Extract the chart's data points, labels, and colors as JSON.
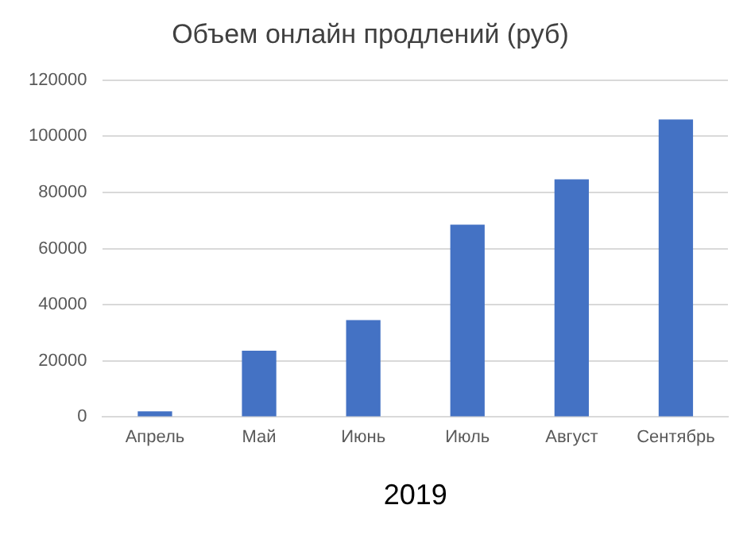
{
  "chart_data": {
    "type": "bar",
    "title": "Объем онлайн продлений (руб)",
    "xlabel": "2019",
    "categories": [
      "Апрель",
      "Май",
      "Июнь",
      "Июль",
      "Август",
      "Сентябрь"
    ],
    "values": [
      2000,
      23600,
      34500,
      68500,
      84700,
      106000
    ],
    "color": "#4472c4",
    "ylim": [
      0,
      120000
    ],
    "yticks": [
      0,
      20000,
      40000,
      60000,
      80000,
      100000,
      120000
    ],
    "grid": "y"
  }
}
